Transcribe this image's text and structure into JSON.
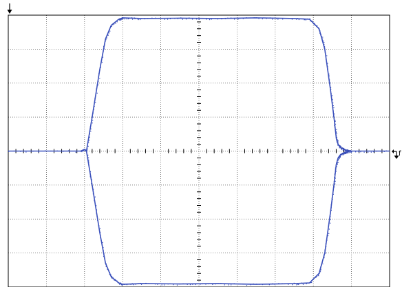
{
  "chart_data": {
    "type": "line",
    "title": "",
    "xlabel": "",
    "ylabel": "",
    "grid": true,
    "divisions": {
      "x": 10,
      "y": 8
    },
    "xlim": [
      0,
      10
    ],
    "ylim": [
      -4,
      4
    ],
    "colors": {
      "trace": "#3a4fb8",
      "grid": "#555555",
      "frame": "#000000"
    },
    "trigger_marker": "f",
    "series": [
      {
        "name": "",
        "x": [
          0,
          1.9,
          2.0,
          2.05,
          2.2,
          2.4,
          2.55,
          2.7,
          2.9,
          3.0,
          3.5,
          4.5,
          5.5,
          6.5,
          7.5,
          7.9,
          8.15,
          8.3,
          8.45,
          8.55,
          8.6,
          8.65,
          8.7,
          8.75,
          8.8,
          8.85,
          8.9,
          9.0,
          10
        ],
        "y": [
          0,
          0,
          0.05,
          0,
          -1.0,
          -2.4,
          -3.3,
          -3.7,
          -3.88,
          -3.92,
          -3.9,
          -3.91,
          -3.9,
          -3.92,
          -3.9,
          -3.88,
          -3.6,
          -3.0,
          -1.8,
          -0.9,
          -0.4,
          -0.2,
          -0.12,
          -0.08,
          -0.05,
          -0.03,
          -0.02,
          0,
          0
        ]
      },
      {
        "name": "",
        "x": [
          2.05,
          2.2,
          2.4,
          2.55,
          2.7,
          2.9,
          3.0,
          3.5,
          4.5,
          5.5,
          6.5,
          7.5,
          7.9,
          8.15,
          8.3,
          8.45,
          8.55,
          8.6,
          8.65,
          8.7,
          8.75,
          8.8,
          8.85,
          8.9,
          9.0
        ],
        "y": [
          0,
          1.0,
          2.4,
          3.3,
          3.7,
          3.88,
          3.92,
          3.9,
          3.91,
          3.9,
          3.92,
          3.9,
          3.88,
          3.6,
          3.0,
          1.8,
          0.9,
          0.4,
          0.2,
          0.12,
          0.08,
          0.05,
          0.03,
          0.02,
          0
        ]
      }
    ]
  }
}
